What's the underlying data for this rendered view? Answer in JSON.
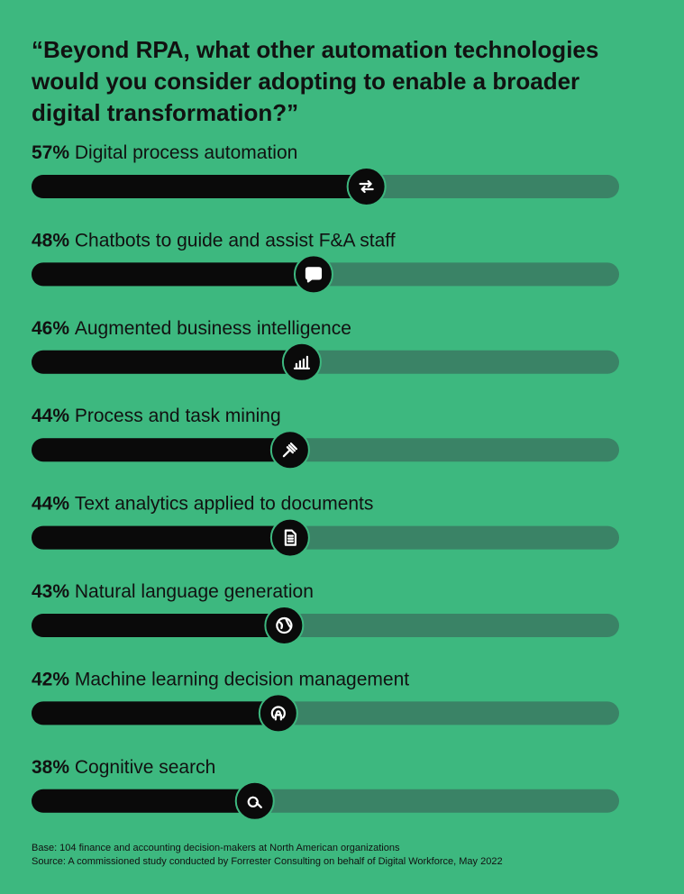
{
  "chart_data": {
    "type": "bar",
    "title": [
      "“Beyond RPA, what other automation technologies",
      "would you consider adopting to enable a broader",
      "digital transformation?”"
    ],
    "categories": [
      "Digital process automation",
      "Chatbots to guide and assist F&A staff",
      "Augmented business intelligence",
      "Process and task mining",
      "Text analytics applied to documents",
      "Natural language generation",
      "Machine learning decision management",
      "Cognitive search"
    ],
    "values": [
      57,
      48,
      46,
      44,
      44,
      43,
      42,
      38
    ],
    "value_labels": [
      "57%",
      "48%",
      "46%",
      "44%",
      "44%",
      "43%",
      "42%",
      "38%"
    ],
    "xlim": [
      0,
      100
    ],
    "color": "#0a0a0a",
    "track_color": "#3a8366",
    "notes": [
      "Base: 104 finance and accounting decision-makers at North American organizations",
      "Source: A commissioned study conducted by Forrester Consulting on behalf of Digital Workforce, May 2022"
    ]
  }
}
